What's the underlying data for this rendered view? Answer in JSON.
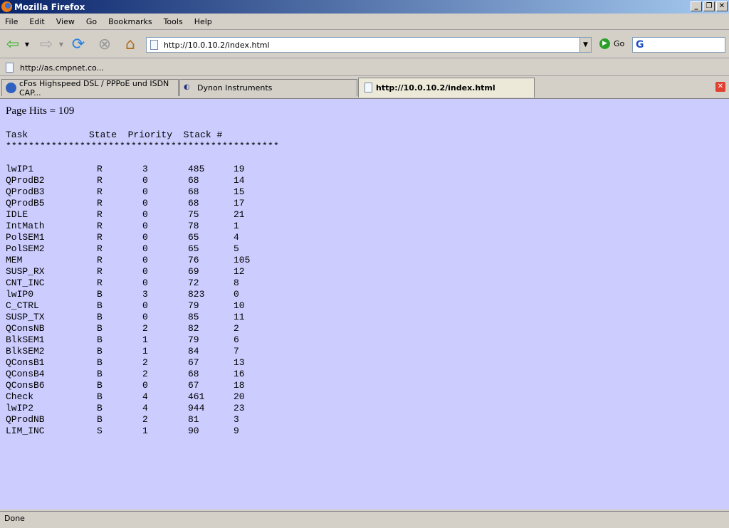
{
  "window": {
    "title": "Mozilla Firefox"
  },
  "menu": [
    "File",
    "Edit",
    "View",
    "Go",
    "Bookmarks",
    "Tools",
    "Help"
  ],
  "nav": {
    "url": "http://10.0.10.2/index.html",
    "go_label": "Go",
    "search_value": ""
  },
  "bookmarks": [
    {
      "label": "http://as.cmpnet.co..."
    }
  ],
  "tabs": [
    {
      "label": "cFos Highspeed DSL / PPPoE und ISDN CAP..."
    },
    {
      "label": "Dynon Instruments"
    },
    {
      "label": "http://10.0.10.2/index.html",
      "active": true
    }
  ],
  "page": {
    "hits": "Page Hits = 109",
    "header": "Task           State  Priority  Stack #",
    "stars": "************************************************",
    "rows": [
      [
        "lwIP1",
        "R",
        "3",
        "485",
        "19"
      ],
      [
        "QProdB2",
        "R",
        "0",
        "68",
        "14"
      ],
      [
        "QProdB3",
        "R",
        "0",
        "68",
        "15"
      ],
      [
        "QProdB5",
        "R",
        "0",
        "68",
        "17"
      ],
      [
        "IDLE",
        "R",
        "0",
        "75",
        "21"
      ],
      [
        "IntMath",
        "R",
        "0",
        "78",
        "1"
      ],
      [
        "PolSEM1",
        "R",
        "0",
        "65",
        "4"
      ],
      [
        "PolSEM2",
        "R",
        "0",
        "65",
        "5"
      ],
      [
        "MEM",
        "R",
        "0",
        "76",
        "105"
      ],
      [
        "SUSP_RX",
        "R",
        "0",
        "69",
        "12"
      ],
      [
        "CNT_INC",
        "R",
        "0",
        "72",
        "8"
      ],
      [
        "lwIP0",
        "B",
        "3",
        "823",
        "0"
      ],
      [
        "C_CTRL",
        "B",
        "0",
        "79",
        "10"
      ],
      [
        "SUSP_TX",
        "B",
        "0",
        "85",
        "11"
      ],
      [
        "QConsNB",
        "B",
        "2",
        "82",
        "2"
      ],
      [
        "BlkSEM1",
        "B",
        "1",
        "79",
        "6"
      ],
      [
        "BlkSEM2",
        "B",
        "1",
        "84",
        "7"
      ],
      [
        "QConsB1",
        "B",
        "2",
        "67",
        "13"
      ],
      [
        "QConsB4",
        "B",
        "2",
        "68",
        "16"
      ],
      [
        "QConsB6",
        "B",
        "0",
        "67",
        "18"
      ],
      [
        "Check",
        "B",
        "4",
        "461",
        "20"
      ],
      [
        "lwIP2",
        "B",
        "4",
        "944",
        "23"
      ],
      [
        "QProdNB",
        "B",
        "2",
        "81",
        "3"
      ],
      [
        "LIM_INC",
        "S",
        "1",
        "90",
        "9"
      ]
    ]
  },
  "status": "Done",
  "colors": {
    "page_bg": "#ccccff"
  }
}
